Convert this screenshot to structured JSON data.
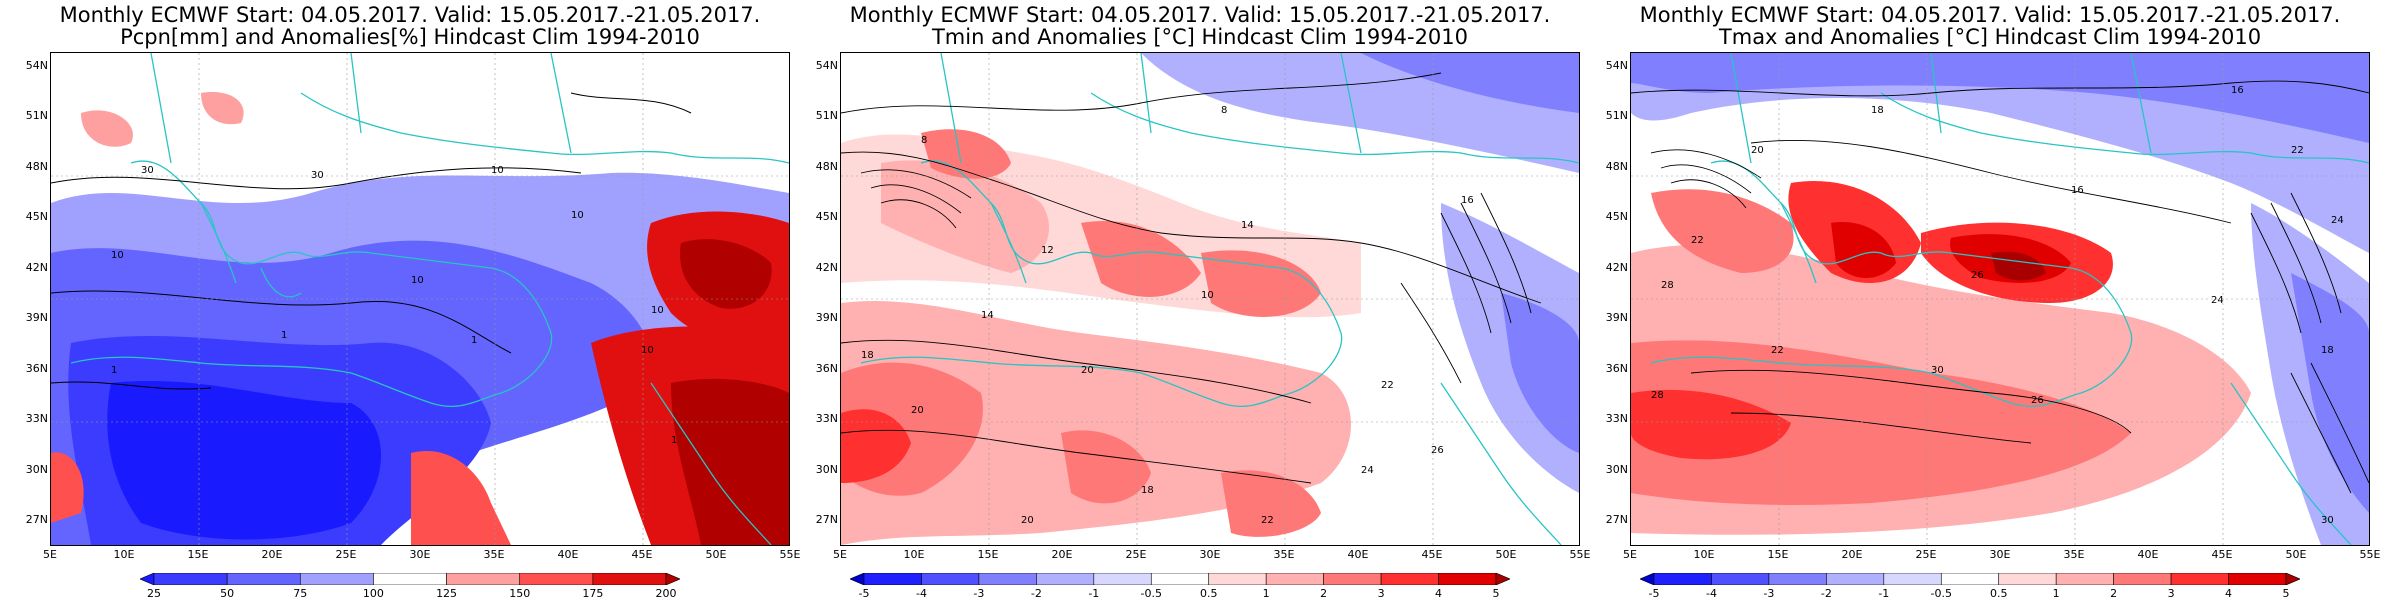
{
  "panels": [
    {
      "title_line1": "Monthly ECMWF Start: 04.05.2017. Valid: 15.05.2017.-21.05.2017.",
      "title_line2": "Pcpn[mm] and Anomalies[%] Hindcast Clim 1994-2010",
      "colorbar_labels": [
        "25",
        "50",
        "75",
        "100",
        "125",
        "150",
        "175",
        "200"
      ],
      "contour_labels": [
        "30",
        "30",
        "10",
        "10",
        "10",
        "10",
        "10",
        "10",
        "1",
        "1",
        "1",
        "1"
      ]
    },
    {
      "title_line1": "Monthly ECMWF Start: 04.05.2017. Valid: 15.05.2017.-21.05.2017.",
      "title_line2": "Tmin and Anomalies [°C] Hindcast Clim 1994-2010",
      "colorbar_labels": [
        "-5",
        "-4",
        "-3",
        "-2",
        "-1",
        "-0.5",
        "0.5",
        "1",
        "2",
        "3",
        "4",
        "5"
      ],
      "contour_labels": [
        "8",
        "8",
        "12",
        "14",
        "16",
        "10",
        "18",
        "14",
        "20",
        "22",
        "20",
        "18",
        "20",
        "24",
        "26",
        "22"
      ]
    },
    {
      "title_line1": "Monthly ECMWF Start: 04.05.2017. Valid: 15.05.2017.-21.05.2017.",
      "title_line2": "Tmax and Anomalies [°C] Hindcast Clim 1994-2010",
      "colorbar_labels": [
        "-5",
        "-4",
        "-3",
        "-2",
        "-1",
        "-0.5",
        "0.5",
        "1",
        "2",
        "3",
        "4",
        "5"
      ],
      "contour_labels": [
        "16",
        "18",
        "20",
        "22",
        "16",
        "24",
        "22",
        "26",
        "28",
        "30",
        "24",
        "22",
        "28",
        "26",
        "18",
        "30"
      ]
    }
  ],
  "lat_labels": [
    "54N",
    "51N",
    "48N",
    "45N",
    "42N",
    "39N",
    "36N",
    "33N",
    "30N",
    "27N"
  ],
  "lon_labels": [
    "5E",
    "10E",
    "15E",
    "20E",
    "25E",
    "30E",
    "35E",
    "40E",
    "45E",
    "50E",
    "55E"
  ],
  "colors": {
    "pcpn_scale": [
      "#1a1aff",
      "#3c3cff",
      "#6464ff",
      "#a0a0ff",
      "#ffffff",
      "#ffa0a0",
      "#ff5050",
      "#e01010",
      "#b00000"
    ],
    "temp_scale": [
      "#0000cc",
      "#2020ff",
      "#5050ff",
      "#8080ff",
      "#b0b0ff",
      "#d8d8ff",
      "#ffffff",
      "#ffd8d8",
      "#ffb0b0",
      "#ff7878",
      "#ff3030",
      "#e00000",
      "#a80000"
    ],
    "coast": "#29c4c4",
    "contour": "#000000"
  }
}
